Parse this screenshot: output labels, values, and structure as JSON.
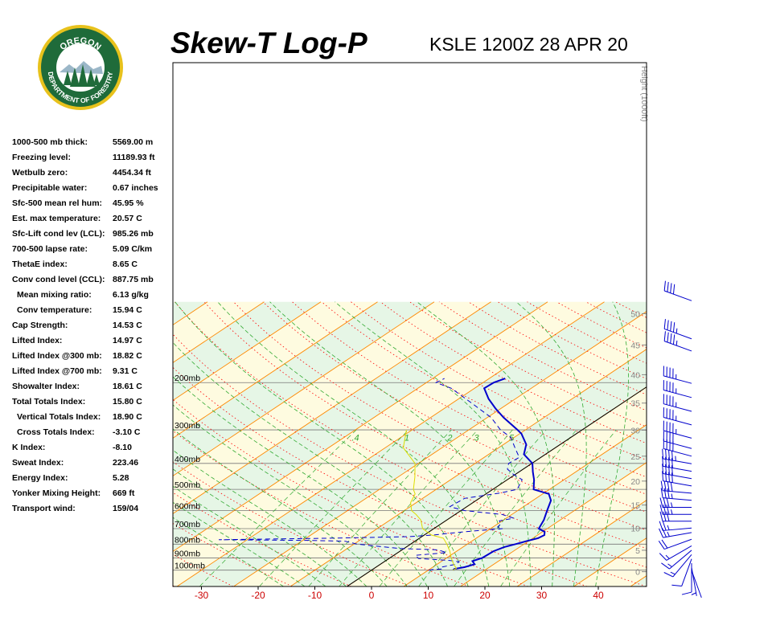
{
  "header": {
    "title": "Skew-T Log-P",
    "subtitle": "KSLE 1200Z 28 APR 20",
    "logo_top": "OREGON",
    "logo_bottom": "DEPARTMENT OF FORESTRY"
  },
  "stats": [
    {
      "label": "1000-500 mb thick:",
      "value": "5569.00 m",
      "indent": false
    },
    {
      "label": "Freezing level:",
      "value": "11189.93 ft",
      "indent": false
    },
    {
      "label": "Wetbulb zero:",
      "value": "4454.34 ft",
      "indent": false
    },
    {
      "label": "Precipitable water:",
      "value": "0.67 inches",
      "indent": false
    },
    {
      "label": "Sfc-500 mean rel hum:",
      "value": "45.95 %",
      "indent": false
    },
    {
      "label": "Est. max temperature:",
      "value": "20.57 C",
      "indent": false
    },
    {
      "label": "Sfc-Lift cond lev (LCL):",
      "value": "985.26 mb",
      "indent": false
    },
    {
      "label": "700-500 lapse rate:",
      "value": "5.09 C/km",
      "indent": false
    },
    {
      "label": "ThetaE index:",
      "value": "8.65 C",
      "indent": false
    },
    {
      "label": "Conv cond level (CCL):",
      "value": "887.75 mb",
      "indent": false
    },
    {
      "label": "Mean mixing ratio:",
      "value": "6.13 g/kg",
      "indent": true
    },
    {
      "label": "Conv temperature:",
      "value": "15.94 C",
      "indent": true
    },
    {
      "label": "Cap Strength:",
      "value": "14.53 C",
      "indent": false
    },
    {
      "label": "Lifted Index:",
      "value": "14.97 C",
      "indent": false
    },
    {
      "label": "Lifted Index @300 mb:",
      "value": "18.82 C",
      "indent": false
    },
    {
      "label": "Lifted Index @700 mb:",
      "value": "9.31 C",
      "indent": false
    },
    {
      "label": "Showalter Index:",
      "value": "18.61 C",
      "indent": false
    },
    {
      "label": "Total Totals Index:",
      "value": "15.80 C",
      "indent": false
    },
    {
      "label": "Vertical Totals Index:",
      "value": "18.90 C",
      "indent": true
    },
    {
      "label": "Cross Totals Index:",
      "value": "-3.10 C",
      "indent": true
    },
    {
      "label": "K Index:",
      "value": "-8.10",
      "indent": false
    },
    {
      "label": "Sweat Index:",
      "value": "223.46",
      "indent": false
    },
    {
      "label": "Energy Index:",
      "value": "5.28",
      "indent": false
    },
    {
      "label": "Yonker Mixing Height:",
      "value": "669 ft",
      "indent": false
    },
    {
      "label": "Transport wind:",
      "value": "159/04",
      "indent": false
    }
  ],
  "chart_data": {
    "type": "line",
    "x_ticks": [
      -30,
      -20,
      -10,
      0,
      10,
      20,
      30,
      40
    ],
    "x_tick_labels": [
      "-30",
      "-20",
      "-10",
      "0",
      "10",
      "20",
      "30",
      "40"
    ],
    "pressure_levels": [
      200,
      300,
      400,
      500,
      600,
      700,
      800,
      900,
      1000
    ],
    "pressure_labels": [
      "200mb",
      "300mb",
      "400mb",
      "500mb",
      "600mb",
      "700mb",
      "800mb",
      "900mb",
      "1000mb"
    ],
    "height_label": "Height (1000ft)",
    "height_ticks": [
      0,
      5,
      10,
      15,
      20,
      25,
      30,
      35,
      40,
      45,
      50
    ],
    "height_tick_labels": [
      "0",
      "5",
      "10",
      "15",
      "20",
      "25",
      "30",
      "35",
      "40",
      "45",
      "50"
    ],
    "mixing_ratio_labels": [
      ".4",
      "1",
      "2",
      "3",
      "5"
    ],
    "colors": {
      "temperature": "#0000cc",
      "dewpoint": "#0000cc",
      "parcel": "#dddd00",
      "isotherms": "#ff8800",
      "dry_adiabats": "#ff0000",
      "moist_adiabats": "#33aa33",
      "wind_barbs": "#0000cc",
      "isobars": "#777777",
      "freezing_line": "#000000",
      "band_yellow": "#fefbe0",
      "band_green": "#e6f6e6"
    },
    "series": [
      {
        "values": [
          [
            1000,
            14.4
          ],
          [
            990,
            14.3
          ],
          [
            975,
            15.6
          ],
          [
            950,
            16.6
          ],
          [
            925,
            15.4
          ],
          [
            900,
            16.3
          ],
          [
            850,
            16.5
          ],
          [
            820,
            17.3
          ],
          [
            800,
            18.5
          ],
          [
            780,
            19.6
          ],
          [
            760,
            20.9
          ],
          [
            740,
            21.2
          ],
          [
            720,
            20.4
          ],
          [
            700,
            18.5
          ],
          [
            650,
            17.1
          ],
          [
            600,
            15.2
          ],
          [
            550,
            13.2
          ],
          [
            520,
            11.1
          ],
          [
            500,
            7.2
          ],
          [
            460,
            4.7
          ],
          [
            430,
            2.4
          ],
          [
            400,
            0.1
          ],
          [
            370,
            -3.8
          ],
          [
            340,
            -6.0
          ],
          [
            310,
            -9.7
          ],
          [
            300,
            -11.4
          ],
          [
            270,
            -17.1
          ],
          [
            250,
            -20.9
          ],
          [
            230,
            -24.7
          ],
          [
            210,
            -28.3
          ],
          [
            200,
            -28.1
          ],
          [
            193,
            -27.2
          ]
        ]
      },
      {
        "values": [
          [
            1000,
            10.1
          ],
          [
            995,
            10.6
          ],
          [
            990,
            12.1
          ],
          [
            975,
            11.5
          ],
          [
            950,
            13.3
          ],
          [
            930,
            13.2
          ],
          [
            920,
            11.2
          ],
          [
            905,
            5.2
          ],
          [
            880,
            3.8
          ],
          [
            860,
            8.6
          ],
          [
            840,
            6.3
          ],
          [
            830,
            -0.9
          ],
          [
            800,
            -9.4
          ],
          [
            780,
            -12.3
          ],
          [
            775,
            -18.3
          ],
          [
            770,
            -35.0
          ],
          [
            760,
            -15.7
          ],
          [
            750,
            -2.4
          ],
          [
            740,
            1.5
          ],
          [
            720,
            6.1
          ],
          [
            700,
            12.1
          ],
          [
            690,
            10.8
          ],
          [
            670,
            10.5
          ],
          [
            655,
            9.5
          ],
          [
            640,
            11.3
          ],
          [
            620,
            8.3
          ],
          [
            600,
            0.7
          ],
          [
            580,
            -3.0
          ],
          [
            540,
            -2.6
          ],
          [
            515,
            2.4
          ],
          [
            500,
            4.3
          ],
          [
            460,
            2.6
          ],
          [
            440,
            -0.3
          ],
          [
            420,
            -2.8
          ],
          [
            400,
            -4.1
          ],
          [
            380,
            -3.8
          ],
          [
            350,
            -7.1
          ],
          [
            320,
            -10.6
          ],
          [
            300,
            -14.4
          ],
          [
            270,
            -19.3
          ],
          [
            240,
            -26.2
          ],
          [
            210,
            -34.1
          ],
          [
            200,
            -38.3
          ],
          [
            193,
            -37.9
          ]
        ]
      },
      {
        "values": [
          [
            1000,
            14.4
          ],
          [
            985,
            14.5
          ],
          [
            950,
            12.9
          ],
          [
            900,
            10.8
          ],
          [
            850,
            8.8
          ],
          [
            800,
            6.4
          ],
          [
            760,
            4.2
          ],
          [
            740,
            1.3
          ],
          [
            700,
            -2.0
          ],
          [
            650,
            -4.6
          ],
          [
            620,
            -6.9
          ],
          [
            600,
            -8.7
          ],
          [
            560,
            -11.0
          ],
          [
            520,
            -12.5
          ],
          [
            500,
            -14.0
          ],
          [
            450,
            -17.0
          ],
          [
            400,
            -20.6
          ],
          [
            350,
            -26.8
          ],
          [
            300,
            -31.0
          ]
        ]
      }
    ],
    "wind_barbs": [
      {
        "height_kft": 0.3,
        "dir": 160,
        "speed_kt": 4
      },
      {
        "height_kft": 1.0,
        "dir": 170,
        "speed_kt": 8
      },
      {
        "height_kft": 2.0,
        "dir": 180,
        "speed_kt": 10
      },
      {
        "height_kft": 3.0,
        "dir": 200,
        "speed_kt": 12
      },
      {
        "height_kft": 4.0,
        "dir": 220,
        "speed_kt": 15
      },
      {
        "height_kft": 5.0,
        "dir": 230,
        "speed_kt": 15
      },
      {
        "height_kft": 6.0,
        "dir": 240,
        "speed_kt": 15
      },
      {
        "height_kft": 7.5,
        "dir": 250,
        "speed_kt": 20
      },
      {
        "height_kft": 9.0,
        "dir": 260,
        "speed_kt": 25
      },
      {
        "height_kft": 10.0,
        "dir": 265,
        "speed_kt": 25
      },
      {
        "height_kft": 11.5,
        "dir": 270,
        "speed_kt": 30
      },
      {
        "height_kft": 13.0,
        "dir": 270,
        "speed_kt": 35
      },
      {
        "height_kft": 14.5,
        "dir": 270,
        "speed_kt": 35
      },
      {
        "height_kft": 16.0,
        "dir": 275,
        "speed_kt": 35
      },
      {
        "height_kft": 17.5,
        "dir": 275,
        "speed_kt": 40
      },
      {
        "height_kft": 19.0,
        "dir": 280,
        "speed_kt": 40
      },
      {
        "height_kft": 20.5,
        "dir": 280,
        "speed_kt": 40
      },
      {
        "height_kft": 22.0,
        "dir": 280,
        "speed_kt": 40
      },
      {
        "height_kft": 23.5,
        "dir": 280,
        "speed_kt": 45
      },
      {
        "height_kft": 25.0,
        "dir": 285,
        "speed_kt": 40
      },
      {
        "height_kft": 26.5,
        "dir": 285,
        "speed_kt": 40
      },
      {
        "height_kft": 28.5,
        "dir": 285,
        "speed_kt": 45
      },
      {
        "height_kft": 31.0,
        "dir": 285,
        "speed_kt": 45
      },
      {
        "height_kft": 33.5,
        "dir": 285,
        "speed_kt": 45
      },
      {
        "height_kft": 36.0,
        "dir": 285,
        "speed_kt": 45
      },
      {
        "height_kft": 38.5,
        "dir": 285,
        "speed_kt": 45
      },
      {
        "height_kft": 44.0,
        "dir": 290,
        "speed_kt": 45
      },
      {
        "height_kft": 46.0,
        "dir": 290,
        "speed_kt": 45
      },
      {
        "height_kft": 52.0,
        "dir": 290,
        "speed_kt": 40
      }
    ]
  }
}
